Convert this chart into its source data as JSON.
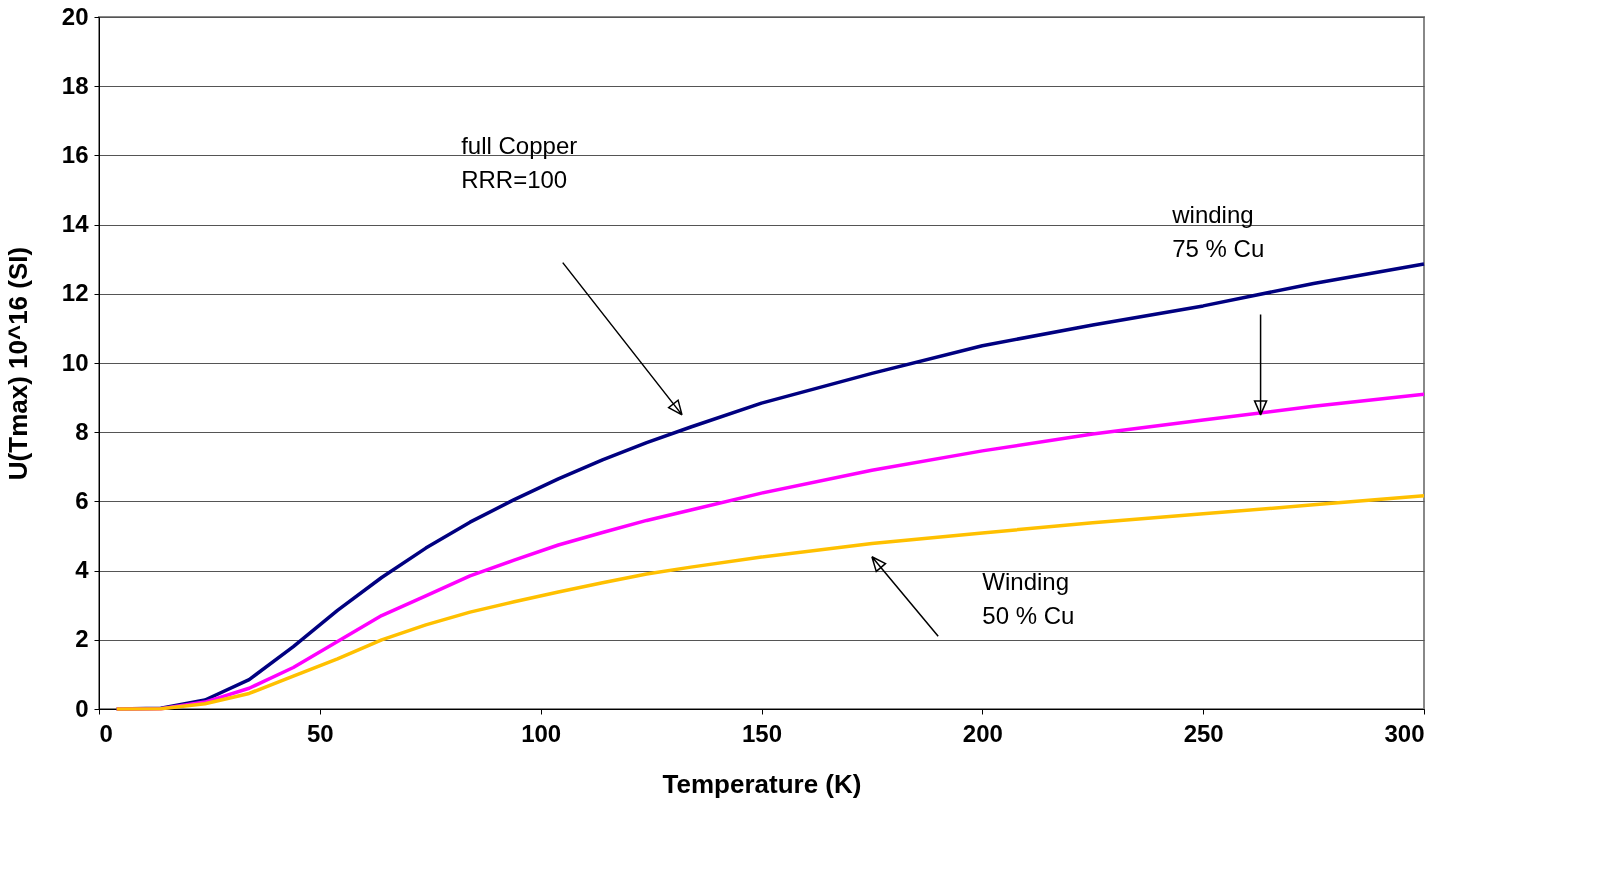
{
  "chart_data": {
    "type": "line",
    "xlabel": "Temperature (K)",
    "ylabel": "U(Tmax) 10^16 (SI)",
    "xlim": [
      0,
      300
    ],
    "xticks": [
      0,
      50,
      100,
      150,
      200,
      250,
      300
    ],
    "ylim": [
      0,
      20
    ],
    "yticks": [
      0,
      2,
      4,
      6,
      8,
      10,
      12,
      14,
      16,
      18,
      20
    ],
    "grid": "y",
    "legend": false,
    "marker": "none",
    "line_style": "solid",
    "x": [
      4,
      14,
      24,
      34,
      44,
      54,
      64,
      74,
      84,
      94,
      104,
      114,
      124,
      134,
      150,
      175,
      200,
      225,
      250,
      275,
      300
    ],
    "series": [
      {
        "color": "#000080",
        "values": [
          0,
          0.02,
          0.26,
          0.85,
          1.8,
          2.85,
          3.8,
          4.65,
          5.4,
          6.05,
          6.65,
          7.2,
          7.7,
          8.15,
          8.84,
          9.7,
          10.5,
          11.1,
          11.65,
          12.3,
          12.86
        ]
      },
      {
        "color": "#ff00ff",
        "values": [
          0,
          0.01,
          0.2,
          0.6,
          1.2,
          1.95,
          2.7,
          3.27,
          3.85,
          4.3,
          4.74,
          5.1,
          5.45,
          5.75,
          6.24,
          6.9,
          7.46,
          7.95,
          8.35,
          8.75,
          9.1
        ]
      },
      {
        "color": "#ffc000",
        "values": [
          0,
          0.01,
          0.15,
          0.45,
          0.95,
          1.45,
          2.0,
          2.43,
          2.8,
          3.1,
          3.38,
          3.65,
          3.9,
          4.1,
          4.39,
          4.78,
          5.09,
          5.38,
          5.64,
          5.9,
          6.16
        ]
      }
    ],
    "annotations": [
      "full Copper\nRRR=100",
      "winding\n75 % Cu",
      "Winding\n50 % Cu"
    ]
  }
}
